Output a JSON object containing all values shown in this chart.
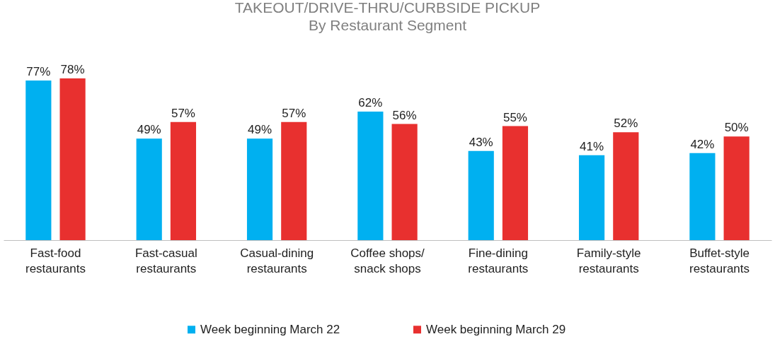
{
  "chart_data": {
    "type": "bar",
    "title": "TAKEOUT/DRIVE-THRU/CURBSIDE PICKUP",
    "subtitle": "By Restaurant Segment",
    "categories": [
      "Fast-food restaurants",
      "Fast-casual restaurants",
      "Casual-dining restaurants",
      "Coffee shops/ snack shops",
      "Fine-dining restaurants",
      "Family-style restaurants",
      "Buffet-style restaurants"
    ],
    "series": [
      {
        "name": "Week beginning March 22",
        "color": "#00b0f0",
        "values": [
          77,
          49,
          49,
          62,
          43,
          41,
          42
        ],
        "value_labels": [
          "77%",
          "49%",
          "49%",
          "62%",
          "43%",
          "41%",
          "42%"
        ]
      },
      {
        "name": "Week beginning March 29",
        "color": "#e8302f",
        "values": [
          78,
          57,
          57,
          56,
          55,
          52,
          50
        ],
        "value_labels": [
          "78%",
          "57%",
          "57%",
          "56%",
          "55%",
          "52%",
          "50%"
        ]
      }
    ],
    "tick_labels": "x",
    "legend": "bottom"
  }
}
